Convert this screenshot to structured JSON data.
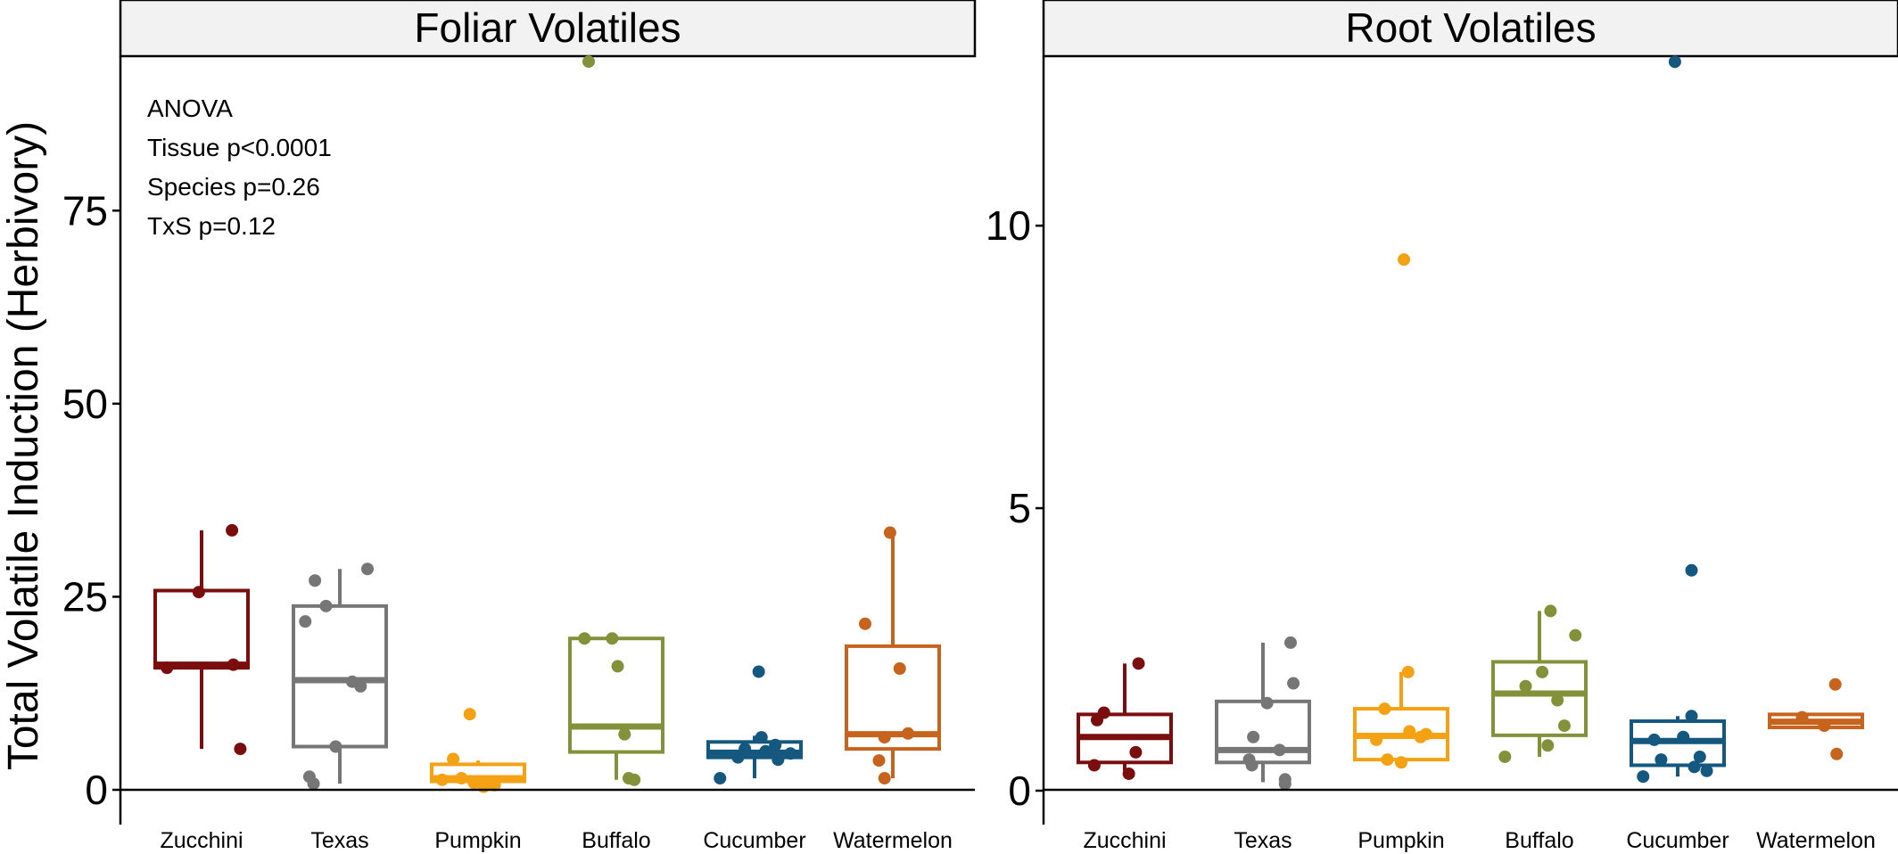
{
  "ylabel": "Total Volatile Induction (Herbivory)",
  "colors": {
    "Zucchini": "#7a0d0d",
    "Texas": "#767676",
    "Pumpkin": "#f4a213",
    "Buffalo": "#82913a",
    "Cucumber": "#14577f",
    "Watermelon": "#c6641d"
  },
  "annotation": [
    "ANOVA",
    "Tissue p<0.0001",
    "Species p=0.26",
    "TxS p=0.12"
  ],
  "chart_data": [
    {
      "type": "box",
      "title": "Foliar Volatiles",
      "ylim": [
        -4.5,
        95
      ],
      "yticks": [
        0,
        25,
        50,
        75
      ],
      "categories": [
        "Zucchini",
        "Texas",
        "Pumpkin",
        "Buffalo",
        "Cucumber",
        "Watermelon"
      ],
      "boxes": [
        {
          "name": "Zucchini",
          "q1": 15.8,
          "median": 16.2,
          "q3": 25.8,
          "whisker_low": 5.3,
          "whisker_high": 33.6
        },
        {
          "name": "Texas",
          "q1": 5.6,
          "median": 14.2,
          "q3": 23.8,
          "whisker_low": 0.8,
          "whisker_high": 28.6
        },
        {
          "name": "Pumpkin",
          "q1": 1.1,
          "median": 1.5,
          "q3": 3.3,
          "whisker_low": 0.4,
          "whisker_high": 3.8
        },
        {
          "name": "Buffalo",
          "q1": 4.9,
          "median": 8.2,
          "q3": 19.6,
          "whisker_low": 1.3,
          "whisker_high": 19.8
        },
        {
          "name": "Cucumber",
          "q1": 4.2,
          "median": 4.8,
          "q3": 6.2,
          "whisker_low": 1.5,
          "whisker_high": 7.0
        },
        {
          "name": "Watermelon",
          "q1": 5.3,
          "median": 7.2,
          "q3": 18.6,
          "whisker_low": 1.5,
          "whisker_high": 33.3
        }
      ],
      "points": {
        "Zucchini": [
          [
            -0.25,
            15.8
          ],
          [
            -0.02,
            25.6
          ],
          [
            0.23,
            16.2
          ],
          [
            0.28,
            5.3
          ],
          [
            0.22,
            33.6
          ]
        ],
        "Texas": [
          [
            -0.25,
            21.8
          ],
          [
            -0.18,
            27.1
          ],
          [
            -0.1,
            23.8
          ],
          [
            -0.03,
            5.6
          ],
          [
            0.09,
            14.0
          ],
          [
            0.15,
            13.4
          ],
          [
            0.2,
            28.6
          ],
          [
            -0.22,
            1.7
          ],
          [
            -0.19,
            0.8
          ]
        ],
        "Pumpkin": [
          [
            -0.18,
            4.0
          ],
          [
            -0.12,
            1.5
          ],
          [
            -0.06,
            9.8
          ],
          [
            0.04,
            0.4
          ],
          [
            0.12,
            0.6
          ],
          [
            -0.26,
            1.3
          ],
          [
            -0.03,
            0.9
          ]
        ],
        "Buffalo": [
          [
            -0.23,
            19.6
          ],
          [
            -0.03,
            19.6
          ],
          [
            0.01,
            16.0
          ],
          [
            0.06,
            7.2
          ],
          [
            0.09,
            1.5
          ],
          [
            0.13,
            1.3
          ],
          [
            -0.2,
            94.3
          ]
        ],
        "Cucumber": [
          [
            -0.25,
            1.5
          ],
          [
            -0.12,
            4.2
          ],
          [
            -0.07,
            5.3
          ],
          [
            0.05,
            6.8
          ],
          [
            0.1,
            4.8
          ],
          [
            0.15,
            5.8
          ],
          [
            0.17,
            3.9
          ],
          [
            0.26,
            4.7
          ],
          [
            0.03,
            15.3
          ],
          [
            0.08,
            5.0
          ]
        ],
        "Watermelon": [
          [
            -0.2,
            21.5
          ],
          [
            -0.06,
            6.8
          ],
          [
            0.05,
            15.7
          ],
          [
            -0.02,
            33.3
          ],
          [
            -0.1,
            3.8
          ],
          [
            0.11,
            7.3
          ],
          [
            -0.06,
            1.5
          ]
        ]
      }
    },
    {
      "type": "box",
      "title": "Root Volatiles",
      "ylim": [
        -0.6,
        13.0
      ],
      "yticks": [
        0,
        5,
        10
      ],
      "categories": [
        "Zucchini",
        "Texas",
        "Pumpkin",
        "Buffalo",
        "Cucumber",
        "Watermelon"
      ],
      "boxes": [
        {
          "name": "Zucchini",
          "q1": 0.5,
          "median": 0.95,
          "q3": 1.35,
          "whisker_low": 0.35,
          "whisker_high": 2.25
        },
        {
          "name": "Texas",
          "q1": 0.5,
          "median": 0.72,
          "q3": 1.58,
          "whisker_low": 0.15,
          "whisker_high": 2.62
        },
        {
          "name": "Pumpkin",
          "q1": 0.55,
          "median": 0.97,
          "q3": 1.45,
          "whisker_low": 0.45,
          "whisker_high": 2.1
        },
        {
          "name": "Buffalo",
          "q1": 0.98,
          "median": 1.72,
          "q3": 2.28,
          "whisker_low": 0.6,
          "whisker_high": 3.18
        },
        {
          "name": "Cucumber",
          "q1": 0.45,
          "median": 0.88,
          "q3": 1.23,
          "whisker_low": 0.25,
          "whisker_high": 1.32
        },
        {
          "name": "Watermelon",
          "q1": 1.12,
          "median": 1.22,
          "q3": 1.35,
          "whisker_low": 1.12,
          "whisker_high": 1.35
        }
      ],
      "points": {
        "Zucchini": [
          [
            -0.2,
            1.25
          ],
          [
            -0.15,
            1.38
          ],
          [
            0.1,
            2.25
          ],
          [
            -0.22,
            0.45
          ],
          [
            0.03,
            0.3
          ],
          [
            0.08,
            0.68
          ]
        ],
        "Texas": [
          [
            -0.07,
            0.95
          ],
          [
            0.2,
            2.62
          ],
          [
            0.22,
            1.9
          ],
          [
            0.03,
            1.55
          ],
          [
            -0.1,
            0.55
          ],
          [
            0.12,
            0.72
          ],
          [
            0.16,
            0.2
          ],
          [
            -0.08,
            0.45
          ],
          [
            0.16,
            0.12
          ]
        ],
        "Pumpkin": [
          [
            -0.18,
            0.9
          ],
          [
            -0.12,
            1.45
          ],
          [
            0.05,
            2.1
          ],
          [
            0.06,
            1.05
          ],
          [
            0.14,
            0.95
          ],
          [
            0.18,
            1.0
          ],
          [
            -0.1,
            0.55
          ],
          [
            0.0,
            0.5
          ],
          [
            0.02,
            9.4
          ]
        ],
        "Buffalo": [
          [
            -0.25,
            0.6
          ],
          [
            -0.1,
            1.85
          ],
          [
            0.02,
            2.1
          ],
          [
            0.08,
            3.18
          ],
          [
            0.13,
            1.6
          ],
          [
            0.18,
            1.15
          ],
          [
            0.26,
            2.75
          ],
          [
            0.06,
            0.8
          ]
        ],
        "Cucumber": [
          [
            -0.25,
            0.25
          ],
          [
            -0.17,
            0.9
          ],
          [
            -0.12,
            0.55
          ],
          [
            0.04,
            0.95
          ],
          [
            0.1,
            1.32
          ],
          [
            0.1,
            3.9
          ],
          [
            0.12,
            0.42
          ],
          [
            0.16,
            0.6
          ],
          [
            0.21,
            0.35
          ],
          [
            -0.02,
            12.9
          ]
        ],
        "Watermelon": [
          [
            -0.1,
            1.3
          ],
          [
            0.06,
            1.15
          ],
          [
            0.15,
            0.65
          ],
          [
            0.14,
            1.88
          ]
        ]
      }
    }
  ]
}
